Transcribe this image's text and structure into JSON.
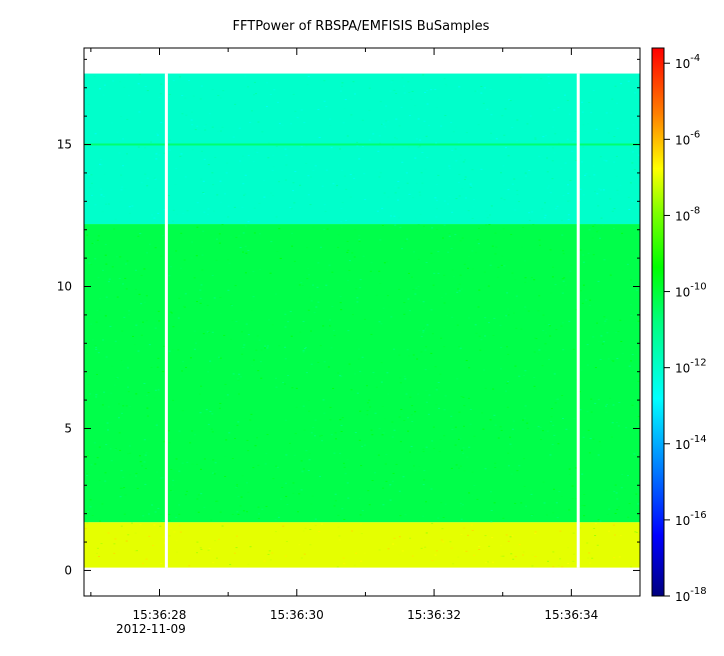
{
  "chart_data": {
    "type": "heatmap",
    "title": "FFTPower of RBSPA/EMFISIS  BuSamples",
    "xlabel": "",
    "ylabel": "",
    "x_ticks": [
      {
        "label": "15:36:28",
        "sec": 28
      },
      {
        "label": "15:36:30",
        "sec": 30
      },
      {
        "label": "15:36:32",
        "sec": 32
      },
      {
        "label": "15:36:34",
        "sec": 34
      }
    ],
    "x_date_label": "2012-11-09",
    "xlim_sec": [
      26.9,
      35.0
    ],
    "y_ticks": [
      0,
      5,
      10,
      15
    ],
    "ylim": [
      -0.9,
      18.4
    ],
    "data_extent": {
      "y_min": 0.1,
      "y_max": 17.5,
      "t_start_sec": 26.9,
      "t_end_sec": 35.0
    },
    "gaps_sec": [
      28.1,
      34.1
    ],
    "bands": [
      {
        "y_min": 0.1,
        "y_max": 1.7,
        "log10_power": -7.0
      },
      {
        "y_min": 1.7,
        "y_max": 12.2,
        "log10_power": -10.2
      },
      {
        "y_min": 12.2,
        "y_max": 17.5,
        "log10_power": -12.0
      }
    ],
    "line_feature_y": 15.0,
    "colorbar": {
      "scale": "log",
      "range_exp": [
        -18,
        -3.6
      ],
      "tick_exponents": [
        -4,
        -6,
        -8,
        -10,
        -12,
        -14,
        -16,
        -18
      ],
      "base_label": "10"
    }
  }
}
